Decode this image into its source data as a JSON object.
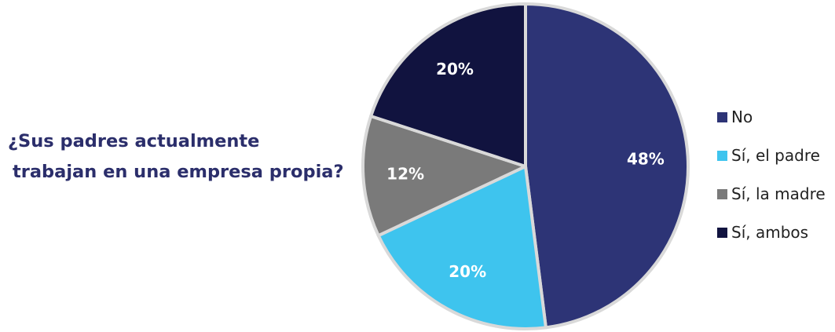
{
  "chart_data": {
    "type": "pie",
    "title_lines": [
      "¿Sus padres actualmente",
      "trabajan en una empresa propia?"
    ],
    "slices": [
      {
        "name": "No",
        "value": 48,
        "label": "48%",
        "color": "#2d3476"
      },
      {
        "name": "Sí, el padre",
        "value": 20,
        "label": "20%",
        "color": "#3ec4ee"
      },
      {
        "name": "Sí, la madre",
        "value": 12,
        "label": "12%",
        "color": "#7a7a7a"
      },
      {
        "name": "Sí, ambos",
        "value": 20,
        "label": "20%",
        "color": "#11133f"
      }
    ],
    "start_angle_deg": 0,
    "direction": "clockwise",
    "legend_position": "right"
  }
}
